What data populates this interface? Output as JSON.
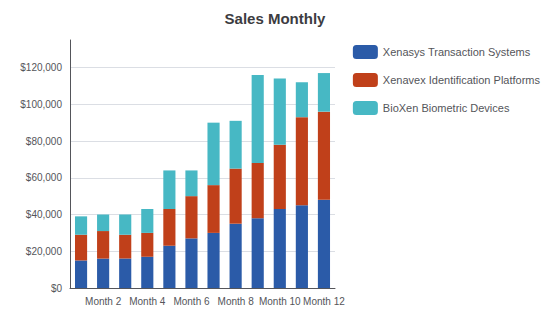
{
  "chart_data": {
    "type": "bar",
    "title": "Sales Monthly",
    "categories": [
      null,
      "Month 2",
      null,
      "Month 4",
      null,
      "Month 6",
      null,
      "Month 8",
      null,
      "Month 10",
      null,
      "Month 12"
    ],
    "series": [
      {
        "name": "Xenasys Transaction Systems",
        "color": "#2B5BA8",
        "values": [
          15000,
          16000,
          16000,
          17000,
          23000,
          27000,
          30000,
          35000,
          38000,
          43000,
          45000,
          48000
        ]
      },
      {
        "name": "Xenavex Identification Platforms",
        "color": "#C0401A",
        "values": [
          14000,
          15000,
          13000,
          13000,
          20000,
          23000,
          26000,
          30000,
          30000,
          35000,
          48000,
          48000
        ]
      },
      {
        "name": "BioXen Biometric Devices",
        "color": "#47B8C4",
        "values": [
          10000,
          9000,
          11000,
          13000,
          21000,
          14000,
          34000,
          26000,
          48000,
          36000,
          19000,
          21000
        ]
      }
    ],
    "ylim": [
      0,
      135000
    ],
    "yticks": [
      {
        "value": 0,
        "label": "$0"
      },
      {
        "value": 20000,
        "label": "$20,000"
      },
      {
        "value": 40000,
        "label": "$40,000"
      },
      {
        "value": 60000,
        "label": "$60,000"
      },
      {
        "value": 80000,
        "label": "$80,000"
      },
      {
        "value": 100000,
        "label": "$100,000"
      },
      {
        "value": 120000,
        "label": "$120,000"
      }
    ],
    "stacked": true,
    "grid": true,
    "legend": "right"
  }
}
